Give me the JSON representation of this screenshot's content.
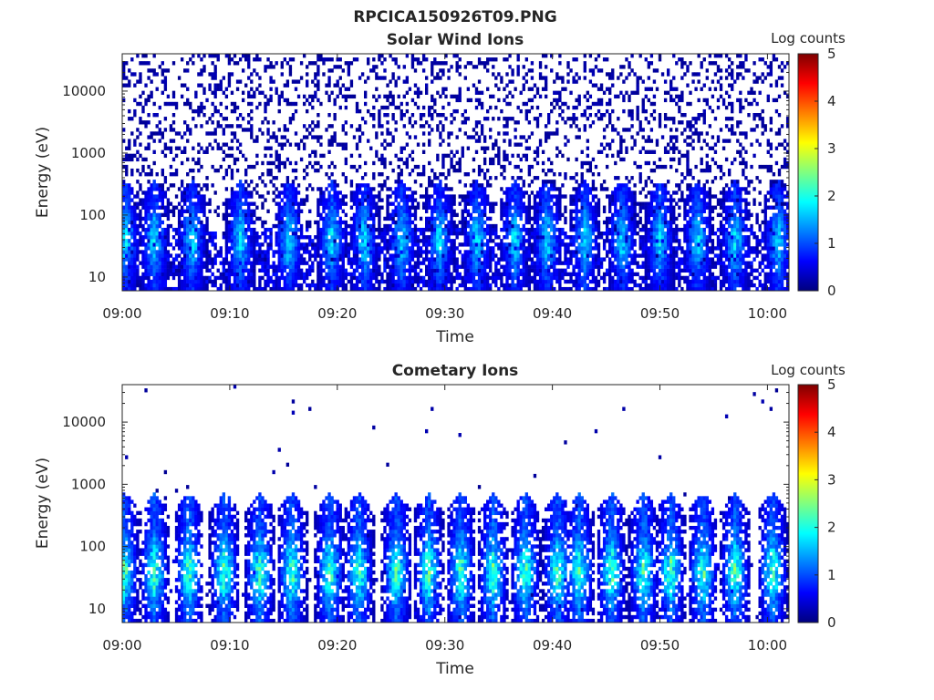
{
  "figure": {
    "title": "RPCICA150926T09.PNG"
  },
  "chart_data": [
    {
      "type": "heatmap",
      "title": "Solar Wind Ions",
      "xlabel": "Time",
      "ylabel": "Energy (eV)",
      "x_ticks": [
        "09:00",
        "09:10",
        "09:20",
        "09:30",
        "09:40",
        "09:50",
        "10:00"
      ],
      "y_ticks": [
        "10",
        "100",
        "1000",
        "10000"
      ],
      "y_scale": "log",
      "y_range": [
        6,
        40000
      ],
      "x_range_minutes": [
        0,
        62
      ],
      "colorbar": {
        "label": "Log counts",
        "ticks": [
          "0",
          "1",
          "2",
          "3",
          "4",
          "5"
        ],
        "range": [
          0,
          5
        ],
        "colormap": "jet"
      },
      "pattern": {
        "background_sparse_density": 0.25,
        "background_level": 0.3,
        "low_energy_density": 0.5,
        "low_energy_level": 0.5,
        "burst_minutes": [
          0.3,
          3,
          6.5,
          11,
          15.5,
          19.5,
          22.5,
          26,
          29.5,
          33,
          36.5,
          39.5,
          43,
          46.5,
          50,
          53.5,
          57,
          61
        ],
        "burst_peak": 1.8,
        "burst_emax": 300
      }
    },
    {
      "type": "heatmap",
      "title": "Cometary Ions",
      "xlabel": "Time",
      "ylabel": "Energy (eV)",
      "x_ticks": [
        "09:00",
        "09:10",
        "09:20",
        "09:30",
        "09:40",
        "09:50",
        "10:00"
      ],
      "y_ticks": [
        "10",
        "100",
        "1000",
        "10000"
      ],
      "y_scale": "log",
      "y_range": [
        6,
        40000
      ],
      "x_range_minutes": [
        0,
        62
      ],
      "colorbar": {
        "label": "Log counts",
        "ticks": [
          "0",
          "1",
          "2",
          "3",
          "4",
          "5"
        ],
        "range": [
          0,
          5
        ],
        "colormap": "jet"
      },
      "pattern": {
        "background_sparse_density": 0.004,
        "background_level": 0.3,
        "low_energy_density": 0.05,
        "low_energy_level": 0.4,
        "burst_minutes": [
          0.2,
          3,
          6.2,
          9.5,
          12.8,
          15.8,
          19.3,
          22,
          25.5,
          28.5,
          31.5,
          34.5,
          37.5,
          40.5,
          42.5,
          45.5,
          48.5,
          51,
          54,
          57,
          60.5
        ],
        "burst_peak": 2.4,
        "burst_emax": 600
      }
    }
  ]
}
